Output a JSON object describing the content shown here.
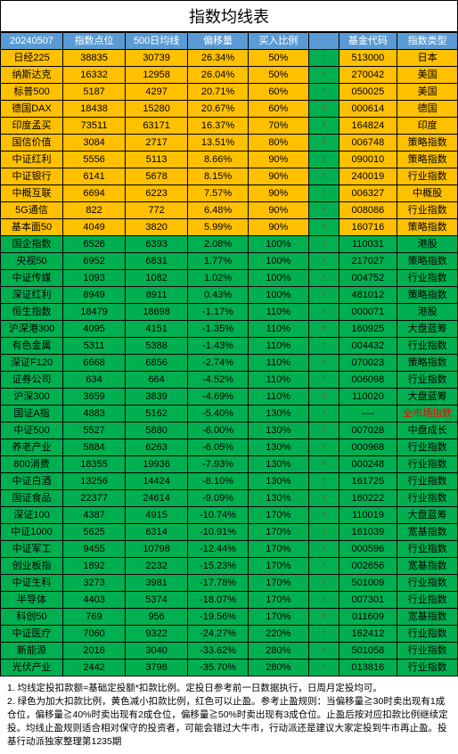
{
  "title": "指数均线表",
  "headers": {
    "date": "20240507",
    "point": "指数点位",
    "ma500": "500日均线",
    "offset": "偏移量",
    "ratio": "买入比例",
    "code": "基金代码",
    "type": "指数类型"
  },
  "rows": [
    {
      "color": "yellow",
      "name": "日经225",
      "point": "38835",
      "ma500": "30739",
      "offset": "26.34%",
      "ratio": "50%",
      "arrow": "↑",
      "code": "513000",
      "type": "日本"
    },
    {
      "color": "yellow",
      "name": "纳斯达克",
      "point": "16332",
      "ma500": "12958",
      "offset": "26.04%",
      "ratio": "50%",
      "arrow": "↑",
      "code": "270042",
      "type": "美国"
    },
    {
      "color": "yellow",
      "name": "标普500",
      "point": "5187",
      "ma500": "4297",
      "offset": "20.71%",
      "ratio": "60%",
      "arrow": "↑",
      "code": "050025",
      "type": "美国"
    },
    {
      "color": "yellow",
      "name": "德国DAX",
      "point": "18438",
      "ma500": "15280",
      "offset": "20.67%",
      "ratio": "60%",
      "arrow": "↑",
      "code": "000614",
      "type": "德国"
    },
    {
      "color": "yellow",
      "name": "印度孟买",
      "point": "73511",
      "ma500": "63171",
      "offset": "16.37%",
      "ratio": "70%",
      "arrow": "↑",
      "code": "164824",
      "type": "印度"
    },
    {
      "color": "yellow",
      "name": "国信价值",
      "point": "3084",
      "ma500": "2717",
      "offset": "13.51%",
      "ratio": "80%",
      "arrow": "↑",
      "code": "006748",
      "type": "策略指数"
    },
    {
      "color": "yellow",
      "name": "中证红利",
      "point": "5556",
      "ma500": "5113",
      "offset": "8.66%",
      "ratio": "90%",
      "arrow": "↑",
      "code": "090010",
      "type": "策略指数"
    },
    {
      "color": "yellow",
      "name": "中证银行",
      "point": "6141",
      "ma500": "5678",
      "offset": "8.15%",
      "ratio": "90%",
      "arrow": "↑",
      "code": "240019",
      "type": "行业指数"
    },
    {
      "color": "yellow",
      "name": "中概互联",
      "point": "6694",
      "ma500": "6223",
      "offset": "7.57%",
      "ratio": "90%",
      "arrow": "↑",
      "code": "006327",
      "type": "中概股"
    },
    {
      "color": "yellow",
      "name": "5G通信",
      "point": "822",
      "ma500": "772",
      "offset": "6.48%",
      "ratio": "90%",
      "arrow": "↑",
      "code": "008086",
      "type": "行业指数"
    },
    {
      "color": "yellow",
      "name": "基本面50",
      "point": "4049",
      "ma500": "3820",
      "offset": "5.99%",
      "ratio": "90%",
      "arrow": "↑",
      "code": "160716",
      "type": "策略指数"
    },
    {
      "color": "green",
      "name": "国企指数",
      "point": "6526",
      "ma500": "6393",
      "offset": "2.08%",
      "ratio": "100%",
      "arrow": "↑",
      "code": "110031",
      "type": "港股"
    },
    {
      "color": "green",
      "name": "央视50",
      "point": "6952",
      "ma500": "6831",
      "offset": "1.77%",
      "ratio": "100%",
      "arrow": "↑",
      "code": "217027",
      "type": "策略指数"
    },
    {
      "color": "green",
      "name": "中证传媒",
      "point": "1093",
      "ma500": "1082",
      "offset": "1.02%",
      "ratio": "100%",
      "arrow": "↑",
      "code": "004752",
      "type": "行业指数"
    },
    {
      "color": "green",
      "name": "深证红利",
      "point": "8949",
      "ma500": "8911",
      "offset": "0.43%",
      "ratio": "100%",
      "arrow": "↑",
      "code": "481012",
      "type": "策略指数"
    },
    {
      "color": "green",
      "name": "恒生指数",
      "point": "18479",
      "ma500": "18698",
      "offset": "-1.17%",
      "ratio": "110%",
      "arrow": "↑",
      "code": "000071",
      "type": "港股"
    },
    {
      "color": "green",
      "name": "沪深港300",
      "point": "4095",
      "ma500": "4151",
      "offset": "-1.35%",
      "ratio": "110%",
      "arrow": "↑",
      "code": "160925",
      "type": "大盘蓝筹"
    },
    {
      "color": "green",
      "name": "有色金属",
      "point": "5311",
      "ma500": "5388",
      "offset": "-1.43%",
      "ratio": "110%",
      "arrow": "↑",
      "code": "004432",
      "type": "行业指数"
    },
    {
      "color": "green",
      "name": "深证F120",
      "point": "6668",
      "ma500": "6856",
      "offset": "-2.74%",
      "ratio": "110%",
      "arrow": "↑",
      "code": "070023",
      "type": "策略指数"
    },
    {
      "color": "green",
      "name": "证券公司",
      "point": "634",
      "ma500": "664",
      "offset": "-4.52%",
      "ratio": "110%",
      "arrow": "↑",
      "code": "006098",
      "type": "行业指数"
    },
    {
      "color": "green",
      "name": "沪深300",
      "point": "3659",
      "ma500": "3839",
      "offset": "-4.69%",
      "ratio": "110%",
      "arrow": "↑",
      "code": "110020",
      "type": "大盘蓝筹"
    },
    {
      "color": "green",
      "name": "国证A指",
      "point": "4883",
      "ma500": "5162",
      "offset": "-5.40%",
      "ratio": "130%",
      "arrow": "↑",
      "code": "----",
      "type": "全市场指数",
      "typeRed": true
    },
    {
      "color": "green",
      "name": "中证500",
      "point": "5527",
      "ma500": "5880",
      "offset": "-6.00%",
      "ratio": "130%",
      "arrow": "↑",
      "code": "007028",
      "type": "中盘成长"
    },
    {
      "color": "green",
      "name": "养老产业",
      "point": "5884",
      "ma500": "6263",
      "offset": "-6.05%",
      "ratio": "130%",
      "arrow": "↑",
      "code": "000968",
      "type": "行业指数"
    },
    {
      "color": "green",
      "name": "800消费",
      "point": "18355",
      "ma500": "19936",
      "offset": "-7.93%",
      "ratio": "130%",
      "arrow": "↑",
      "code": "000248",
      "type": "行业指数"
    },
    {
      "color": "green",
      "name": "中证白酒",
      "point": "13256",
      "ma500": "14424",
      "offset": "-8.10%",
      "ratio": "130%",
      "arrow": "↑",
      "code": "161725",
      "type": "行业指数"
    },
    {
      "color": "green",
      "name": "国证食品",
      "point": "22377",
      "ma500": "24614",
      "offset": "-9.09%",
      "ratio": "130%",
      "arrow": "↑",
      "code": "160222",
      "type": "行业指数"
    },
    {
      "color": "green",
      "name": "深证100",
      "point": "4387",
      "ma500": "4915",
      "offset": "-10.74%",
      "ratio": "170%",
      "arrow": "↑",
      "code": "110019",
      "type": "大盘蓝筹"
    },
    {
      "color": "green",
      "name": "中证1000",
      "point": "5625",
      "ma500": "6314",
      "offset": "-10.91%",
      "ratio": "170%",
      "arrow": "↑",
      "code": "161039",
      "type": "宽基指数"
    },
    {
      "color": "green",
      "name": "中证军工",
      "point": "9455",
      "ma500": "10798",
      "offset": "-12.44%",
      "ratio": "170%",
      "arrow": "↑",
      "code": "000596",
      "type": "行业指数"
    },
    {
      "color": "green",
      "name": "创业板指",
      "point": "1892",
      "ma500": "2232",
      "offset": "-15.23%",
      "ratio": "170%",
      "arrow": "↑",
      "code": "002656",
      "type": "宽基指数"
    },
    {
      "color": "green",
      "name": "中证生科",
      "point": "3273",
      "ma500": "3981",
      "offset": "-17.78%",
      "ratio": "170%",
      "arrow": "↑",
      "code": "501009",
      "type": "行业指数"
    },
    {
      "color": "green",
      "name": "半导体",
      "point": "4403",
      "ma500": "5374",
      "offset": "-18.07%",
      "ratio": "170%",
      "arrow": "↑",
      "code": "007301",
      "type": "行业指数"
    },
    {
      "color": "green",
      "name": "科创50",
      "point": "769",
      "ma500": "956",
      "offset": "-19.56%",
      "ratio": "170%",
      "arrow": "↑",
      "code": "011609",
      "type": "宽基指数"
    },
    {
      "color": "green",
      "name": "中证医疗",
      "point": "7060",
      "ma500": "9322",
      "offset": "-24.27%",
      "ratio": "220%",
      "arrow": "↑",
      "code": "162412",
      "type": "行业指数"
    },
    {
      "color": "green",
      "name": "新能源",
      "point": "2018",
      "ma500": "3040",
      "offset": "-33.62%",
      "ratio": "280%",
      "arrow": "↑",
      "code": "501058",
      "type": "行业指数"
    },
    {
      "color": "green",
      "name": "光伏产业",
      "point": "2442",
      "ma500": "3798",
      "offset": "-35.70%",
      "ratio": "280%",
      "arrow": "↑",
      "code": "013816",
      "type": "行业指数"
    }
  ],
  "footer": {
    "line1": "1. 均线定投扣款额=基础定投额*扣款比例。定投日参考前一日数据执行，日周月定投均可。",
    "line2": "2. 绿色为加大扣款比例，黄色减小扣款比例，红色可以止盈。参考止盈规则：当偏移量≧30时卖出现有1成仓位，偏移量≧40%时卖出现有2成仓位，偏移量≧50%时卖出现有3成仓位。止盈后按对应扣款比例继续定投。均线止盈规则适合相对保守的投资者，可能会错过大牛市，行动派还是建议大家定投到牛市再止盈。投基行动派独家整理第1235期"
  }
}
